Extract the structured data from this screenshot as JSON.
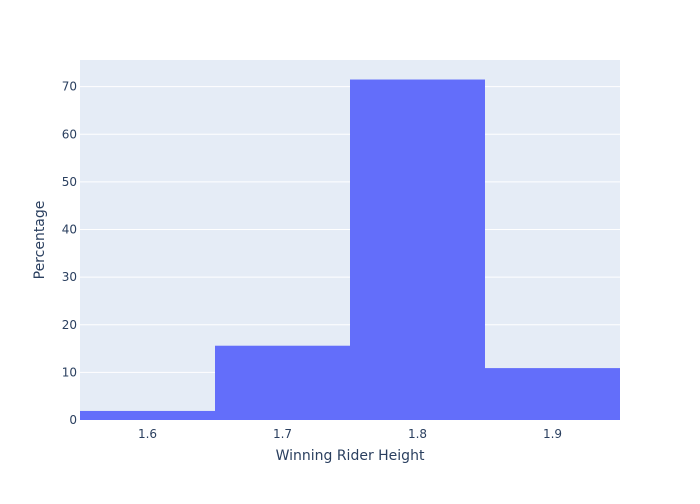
{
  "chart_data": {
    "type": "bar",
    "title": "",
    "xlabel": "Winning Rider Height",
    "ylabel": "Percentage",
    "bins": [
      {
        "start": 1.55,
        "end": 1.65,
        "value": 1.9
      },
      {
        "start": 1.65,
        "end": 1.75,
        "value": 15.6
      },
      {
        "start": 1.75,
        "end": 1.85,
        "value": 71.5
      },
      {
        "start": 1.85,
        "end": 1.95,
        "value": 10.9
      }
    ],
    "xlim": [
      1.55,
      1.95
    ],
    "ylim": [
      0,
      75.6
    ],
    "x_ticks": [
      1.6,
      1.7,
      1.8,
      1.9
    ],
    "x_tick_labels": [
      "1.6",
      "1.7",
      "1.8",
      "1.9"
    ],
    "y_ticks": [
      0,
      10,
      20,
      30,
      40,
      50,
      60,
      70
    ],
    "y_tick_labels": [
      "0",
      "10",
      "20",
      "30",
      "40",
      "50",
      "60",
      "70"
    ],
    "grid": true,
    "colors": {
      "bar": "#636efa",
      "plot_background": "#e5ecf6",
      "grid": "#ffffff",
      "text": "#2a3f5f"
    }
  }
}
